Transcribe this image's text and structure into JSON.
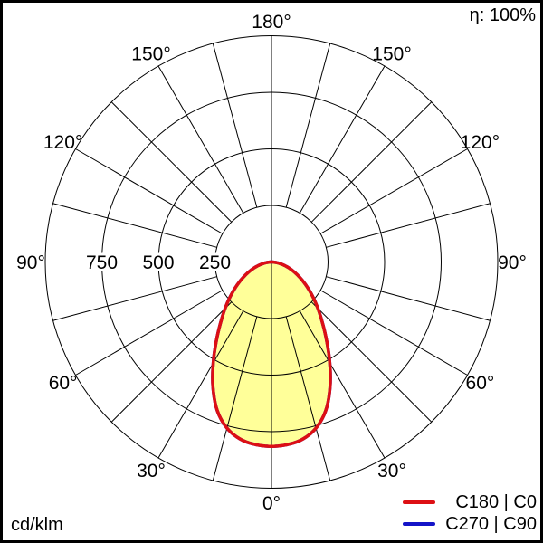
{
  "annotations": {
    "efficiency": "η: 100%",
    "units": "cd/klm"
  },
  "chart_data": {
    "type": "polar",
    "variant": "photometric luminous intensity distribution (polar curve)",
    "units": "cd/klm",
    "efficiency": "η: 100%",
    "angle_orientation": "0° at bottom, 180° at top, angles mirrored left and right",
    "angle_minor_step_deg": 15,
    "angle_label_step_deg": 30,
    "angle_labels": [
      "0°",
      "30°",
      "60°",
      "90°",
      "120°",
      "150°",
      "180°"
    ],
    "radial_axis": {
      "max": 1000,
      "rings": [
        250,
        500,
        750,
        1000
      ],
      "labeled_rings": [
        250,
        500,
        750
      ],
      "labels_side": "left of center on horizontal axis"
    },
    "grid_color": "#000000",
    "fill_color": "#ffff99",
    "legend_position": "bottom-right",
    "series": [
      {
        "name": "C180 | C0",
        "color": "#dd0f14",
        "filled": true,
        "symmetric_mirror": true,
        "gamma_deg": [
          0,
          5,
          10,
          15,
          20,
          25,
          30,
          35,
          40,
          45,
          50,
          55,
          60,
          65,
          70,
          75,
          80,
          85,
          90
        ],
        "intensity_cd_klm": [
          815,
          810,
          795,
          760,
          700,
          612,
          515,
          425,
          350,
          290,
          238,
          193,
          153,
          118,
          88,
          60,
          36,
          16,
          0
        ]
      },
      {
        "name": "C270 | C90",
        "color": "#1414c8",
        "filled": false,
        "symmetric_mirror": true,
        "gamma_deg": [
          0,
          5,
          10,
          15,
          20,
          25,
          30,
          35,
          40,
          45,
          50,
          55,
          60,
          65,
          70,
          75,
          80,
          85,
          90
        ],
        "intensity_cd_klm": [
          815,
          810,
          795,
          760,
          700,
          612,
          515,
          425,
          350,
          290,
          238,
          193,
          153,
          118,
          88,
          60,
          36,
          16,
          0
        ]
      }
    ]
  }
}
